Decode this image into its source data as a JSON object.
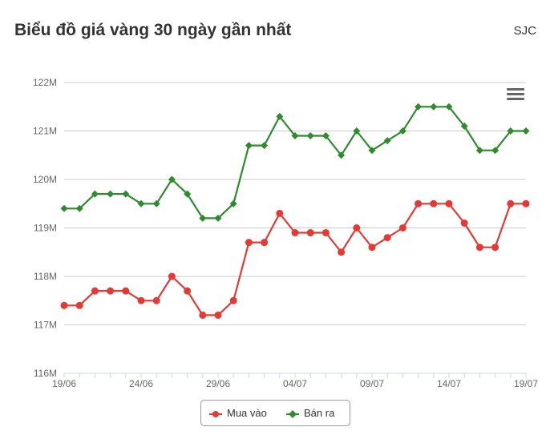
{
  "header": {
    "title": "Biểu đồ giá vàng 30 ngày gần nhất",
    "brand": "SJC"
  },
  "toolbar": {
    "menu_icon": "hamburger-menu-icon"
  },
  "chart_data": {
    "type": "line",
    "title": "Biểu đồ giá vàng 30 ngày gần nhất",
    "xlabel": "",
    "ylabel": "",
    "x": [
      "19/06",
      "20/06",
      "21/06",
      "22/06",
      "23/06",
      "24/06",
      "25/06",
      "26/06",
      "27/06",
      "28/06",
      "29/06",
      "30/06",
      "01/07",
      "02/07",
      "03/07",
      "04/07",
      "05/07",
      "06/07",
      "07/07",
      "08/07",
      "09/07",
      "10/07",
      "11/07",
      "12/07",
      "13/07",
      "14/07",
      "15/07",
      "16/07",
      "17/07",
      "18/07",
      "19/07"
    ],
    "x_tick_labels": [
      "19/06",
      "24/06",
      "29/06",
      "04/07",
      "09/07",
      "14/07",
      "19/07"
    ],
    "y_tick_labels": [
      "116M",
      "117M",
      "118M",
      "119M",
      "120M",
      "121M",
      "122M"
    ],
    "ylim": [
      116,
      122
    ],
    "y_unit": "M",
    "grid": true,
    "legend_position": "bottom-center",
    "series": [
      {
        "name": "Mua vào",
        "color": "#e53935",
        "marker": "circle",
        "values": [
          117.4,
          117.4,
          117.7,
          117.7,
          117.7,
          117.5,
          117.5,
          118.0,
          117.7,
          117.2,
          117.2,
          117.5,
          118.7,
          118.7,
          119.3,
          118.9,
          118.9,
          118.9,
          118.5,
          119.0,
          118.6,
          118.8,
          119.0,
          119.5,
          119.5,
          119.5,
          119.1,
          118.6,
          118.6,
          119.5,
          119.5
        ]
      },
      {
        "name": "Bán ra",
        "color": "#2e8b2e",
        "marker": "diamond",
        "values": [
          119.4,
          119.4,
          119.7,
          119.7,
          119.7,
          119.5,
          119.5,
          120.0,
          119.7,
          119.2,
          119.2,
          119.5,
          120.7,
          120.7,
          121.3,
          120.9,
          120.9,
          120.9,
          120.5,
          121.0,
          120.6,
          120.8,
          121.0,
          121.5,
          121.5,
          121.5,
          121.1,
          120.6,
          120.6,
          121.0,
          121.0
        ]
      }
    ]
  }
}
